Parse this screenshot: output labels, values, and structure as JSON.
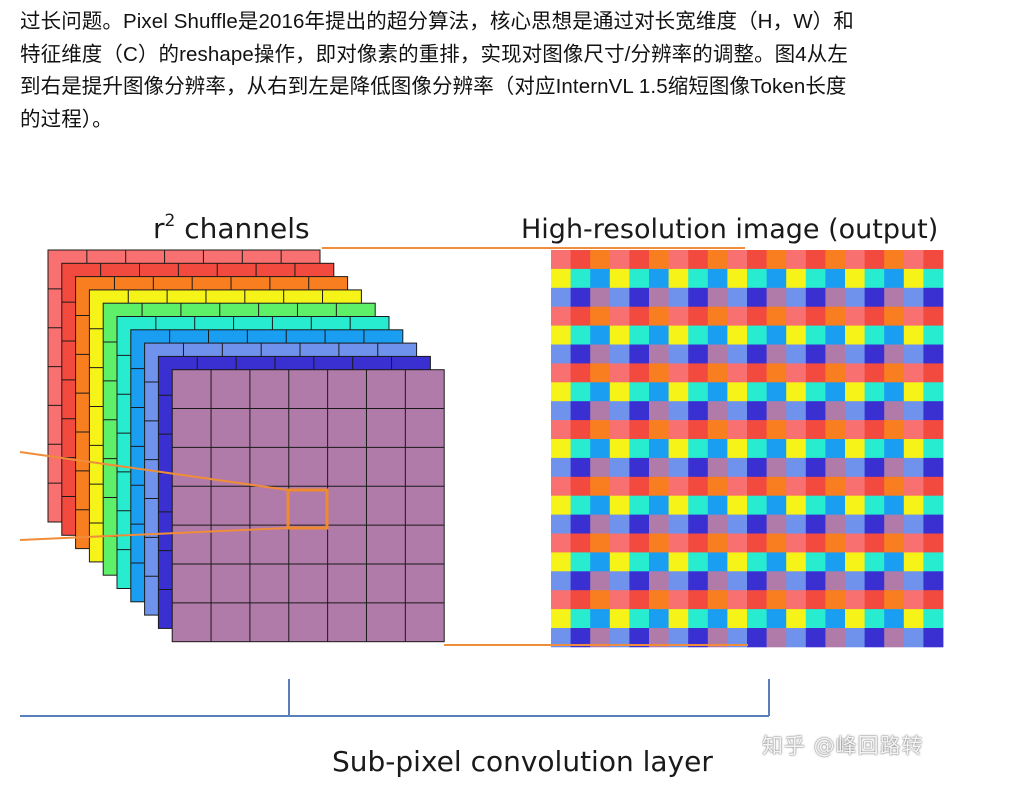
{
  "article": {
    "lines": [
      "过长问题。Pixel Shuffle是2016年提出的超分算法，核心思想是通过对长宽维度（H，W）和",
      "特征维度（C）的reshape操作，即对像素的重排，实现对图像尺寸/分辨率的调整。图4从左",
      "到右是提升图像分辨率，从右到左是降低图像分辨率（对应InternVL 1.5缩短图像Token长度",
      "的过程）。"
    ]
  },
  "figure": {
    "channels_label_prefix": "r",
    "channels_label_sup": "2",
    "channels_label_suffix": " channels",
    "output_label": "High-resolution image (output)",
    "bottom_label": "Sub-pixel convolution layer",
    "stack_colors": [
      "#f97070",
      "#f34a40",
      "#f97e1f",
      "#f5f318",
      "#5ff06a",
      "#28ecd0",
      "#1a9ef2",
      "#6f92ec",
      "#3a2fd1",
      "#b07aa9"
    ],
    "output_palette": [
      "#f97070",
      "#f34a40",
      "#f97e1f",
      "#f5f318",
      "#28ecd0",
      "#1a9ef2",
      "#6f92ec",
      "#3a2fd1",
      "#b07aa9"
    ],
    "connector_color": "#ef8d3b",
    "highlight_color": "#f08a2e",
    "bracket_color": "#5b7fb8"
  },
  "watermark": "知乎 @峰回路转"
}
